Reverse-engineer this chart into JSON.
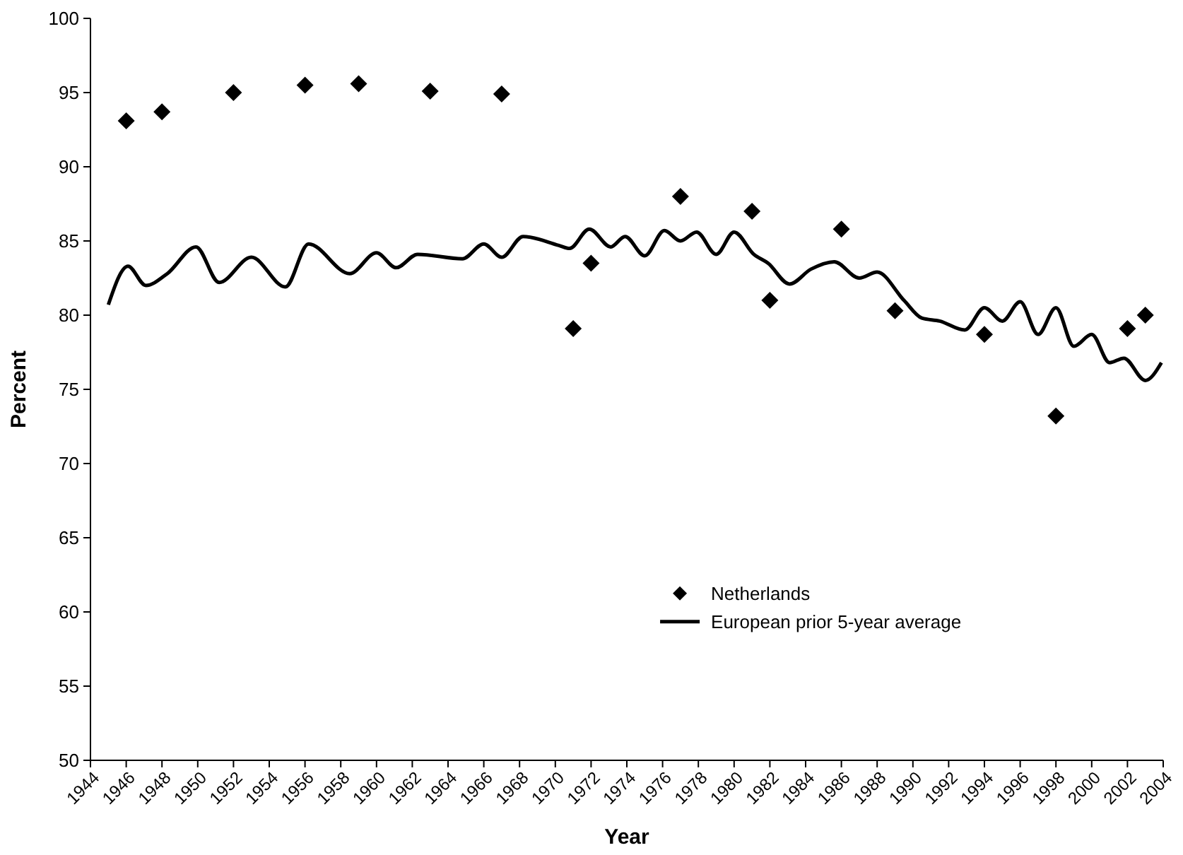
{
  "chart_data": {
    "type": "scatter",
    "xlabel": "Year",
    "ylabel": "Percent",
    "xlim": [
      1944,
      2004
    ],
    "xticks": [
      1944,
      1946,
      1948,
      1950,
      1952,
      1954,
      1956,
      1958,
      1960,
      1962,
      1964,
      1966,
      1968,
      1970,
      1972,
      1974,
      1976,
      1978,
      1980,
      1982,
      1984,
      1986,
      1988,
      1990,
      1992,
      1994,
      1996,
      1998,
      2000,
      2002,
      2004
    ],
    "ylim": [
      50,
      100
    ],
    "yticks": [
      50,
      55,
      60,
      65,
      70,
      75,
      80,
      85,
      90,
      95,
      100
    ],
    "grid": false,
    "legend": "bottom",
    "series": [
      {
        "name": "Netherlands",
        "marker": "diamond",
        "color": "#000000",
        "x": [
          1946,
          1948,
          1952,
          1956,
          1959,
          1963,
          1967,
          1971,
          1972,
          1977,
          1981,
          1982,
          1986,
          1989,
          1994,
          1998,
          2002,
          2003
        ],
        "values": [
          93.1,
          93.7,
          95.0,
          95.5,
          95.6,
          95.1,
          94.9,
          79.1,
          83.5,
          88.0,
          87.0,
          81.0,
          85.8,
          80.3,
          78.7,
          73.2,
          79.1,
          80.0
        ]
      },
      {
        "name": "European prior 5-year average",
        "type": "line",
        "marker": "none",
        "line_style": "solid",
        "color": "#000000",
        "x": [
          1945,
          1946.1,
          1947.1,
          1948.3,
          1949.9,
          1951.2,
          1953,
          1954.9,
          1956.2,
          1958.5,
          1960,
          1961.1,
          1962.3,
          1964.8,
          1966,
          1967,
          1968.2,
          1970.2,
          1970.8,
          1971.9,
          1973.1,
          1973.9,
          1975,
          1976.1,
          1977,
          1977.9,
          1979,
          1980,
          1981.1,
          1981.9,
          1983.1,
          1984.3,
          1985.6,
          1987,
          1988,
          1989.5,
          1990.5,
          1991.5,
          1992.9,
          1994,
          1995,
          1996,
          1997,
          1998,
          1999,
          2000,
          2001,
          2001.8,
          2003,
          2003.9
        ],
        "values": [
          80.7,
          83.3,
          82.0,
          82.8,
          84.6,
          82.2,
          83.9,
          81.9,
          84.8,
          82.8,
          84.2,
          83.2,
          84.1,
          83.8,
          84.8,
          83.9,
          85.3,
          84.7,
          84.5,
          85.8,
          84.6,
          85.3,
          84.0,
          85.7,
          85.0,
          85.6,
          84.1,
          85.6,
          84.1,
          83.5,
          82.1,
          83.1,
          83.6,
          82.5,
          82.9,
          81.0,
          79.8,
          79.6,
          79.0,
          80.5,
          79.6,
          80.9,
          78.7,
          80.5,
          77.9,
          78.7,
          76.8,
          77.1,
          75.6,
          76.8
        ]
      }
    ]
  }
}
